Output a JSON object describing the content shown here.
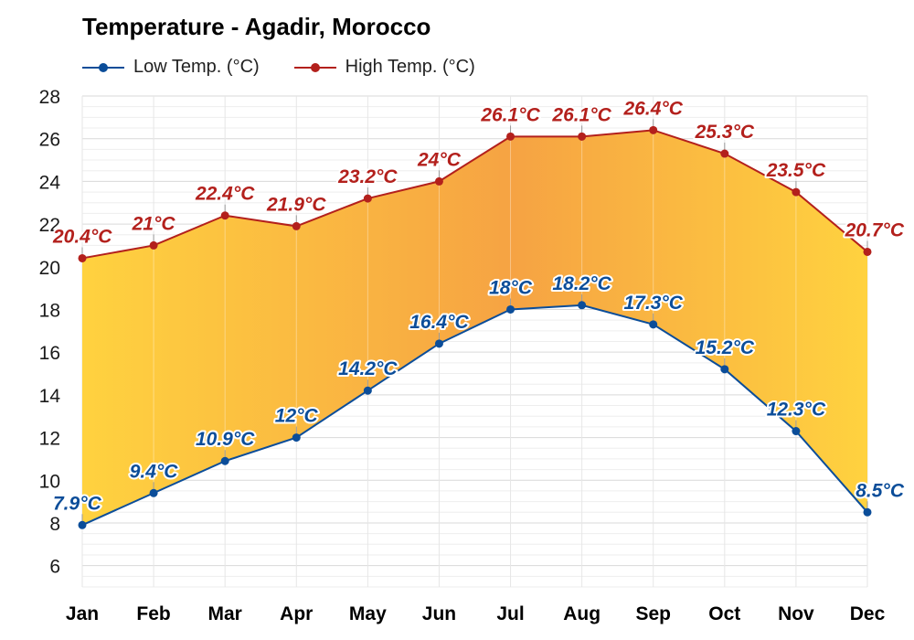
{
  "chart_data": {
    "type": "area",
    "title": "Temperature - Agadir, Morocco",
    "categories": [
      "Jan",
      "Feb",
      "Mar",
      "Apr",
      "May",
      "Jun",
      "Jul",
      "Aug",
      "Sep",
      "Oct",
      "Nov",
      "Dec"
    ],
    "series": [
      {
        "name": "Low Temp. (°C)",
        "color": "#0b4d99",
        "values": [
          7.9,
          9.4,
          10.9,
          12,
          14.2,
          16.4,
          18,
          18.2,
          17.3,
          15.2,
          12.3,
          8.5
        ],
        "labels": [
          "7.9°C",
          "9.4°C",
          "10.9°C",
          "12°C",
          "14.2°C",
          "16.4°C",
          "18°C",
          "18.2°C",
          "17.3°C",
          "15.2°C",
          "12.3°C",
          "8.5°C"
        ]
      },
      {
        "name": "High Temp. (°C)",
        "color": "#b3201c",
        "values": [
          20.4,
          21,
          22.4,
          21.9,
          23.2,
          24,
          26.1,
          26.1,
          26.4,
          25.3,
          23.5,
          20.7
        ],
        "labels": [
          "20.4°C",
          "21°C",
          "22.4°C",
          "21.9°C",
          "23.2°C",
          "24°C",
          "26.1°C",
          "26.1°C",
          "26.4°C",
          "25.3°C",
          "23.5°C",
          "20.7°C"
        ]
      }
    ],
    "y_ticks": [
      6,
      8,
      10,
      12,
      14,
      16,
      18,
      20,
      22,
      24,
      26,
      28
    ],
    "ylim": [
      5,
      28
    ],
    "grid": true,
    "fill_colors": [
      "#ffd23f",
      "#f6a343"
    ],
    "legend_position": "top-left"
  }
}
